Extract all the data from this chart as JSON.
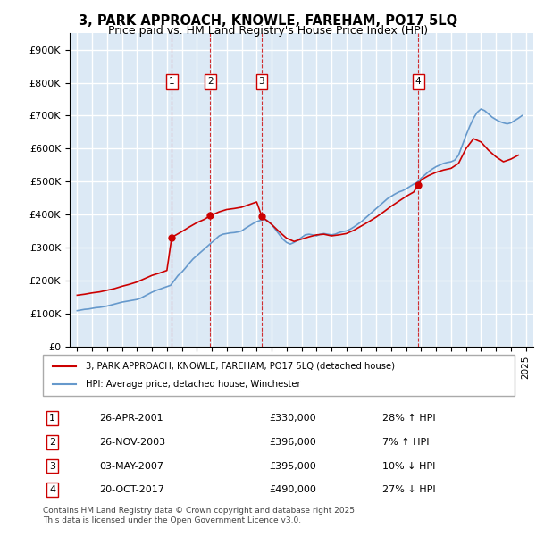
{
  "title": "3, PARK APPROACH, KNOWLE, FAREHAM, PO17 5LQ",
  "subtitle": "Price paid vs. HM Land Registry's House Price Index (HPI)",
  "legend_property": "3, PARK APPROACH, KNOWLE, FAREHAM, PO17 5LQ (detached house)",
  "legend_hpi": "HPI: Average price, detached house, Winchester",
  "footer": "Contains HM Land Registry data © Crown copyright and database right 2025.\nThis data is licensed under the Open Government Licence v3.0.",
  "transactions": [
    {
      "num": 1,
      "date": "26-APR-2001",
      "price": 330000,
      "pct": "28%",
      "dir": "↑"
    },
    {
      "num": 2,
      "date": "26-NOV-2003",
      "price": 396000,
      "pct": "7%",
      "dir": "↑"
    },
    {
      "num": 3,
      "date": "03-MAY-2007",
      "price": 395000,
      "pct": "10%",
      "dir": "↓"
    },
    {
      "num": 4,
      "date": "20-OCT-2017",
      "price": 490000,
      "pct": "27%",
      "dir": "↓"
    }
  ],
  "transaction_years": [
    2001.32,
    2003.9,
    2007.34,
    2017.8
  ],
  "transaction_prices": [
    330000,
    396000,
    395000,
    490000
  ],
  "hpi_years": [
    1995.0,
    1995.25,
    1995.5,
    1995.75,
    1996.0,
    1996.25,
    1996.5,
    1996.75,
    1997.0,
    1997.25,
    1997.5,
    1997.75,
    1998.0,
    1998.25,
    1998.5,
    1998.75,
    1999.0,
    1999.25,
    1999.5,
    1999.75,
    2000.0,
    2000.25,
    2000.5,
    2000.75,
    2001.0,
    2001.25,
    2001.5,
    2001.75,
    2002.0,
    2002.25,
    2002.5,
    2002.75,
    2003.0,
    2003.25,
    2003.5,
    2003.75,
    2004.0,
    2004.25,
    2004.5,
    2004.75,
    2005.0,
    2005.25,
    2005.5,
    2005.75,
    2006.0,
    2006.25,
    2006.5,
    2006.75,
    2007.0,
    2007.25,
    2007.5,
    2007.75,
    2008.0,
    2008.25,
    2008.5,
    2008.75,
    2009.0,
    2009.25,
    2009.5,
    2009.75,
    2010.0,
    2010.25,
    2010.5,
    2010.75,
    2011.0,
    2011.25,
    2011.5,
    2011.75,
    2012.0,
    2012.25,
    2012.5,
    2012.75,
    2013.0,
    2013.25,
    2013.5,
    2013.75,
    2014.0,
    2014.25,
    2014.5,
    2014.75,
    2015.0,
    2015.25,
    2015.5,
    2015.75,
    2016.0,
    2016.25,
    2016.5,
    2016.75,
    2017.0,
    2017.25,
    2017.5,
    2017.75,
    2018.0,
    2018.25,
    2018.5,
    2018.75,
    2019.0,
    2019.25,
    2019.5,
    2019.75,
    2020.0,
    2020.25,
    2020.5,
    2020.75,
    2021.0,
    2021.25,
    2021.5,
    2021.75,
    2022.0,
    2022.25,
    2022.5,
    2022.75,
    2023.0,
    2023.25,
    2023.5,
    2023.75,
    2024.0,
    2024.25,
    2024.5,
    2024.75
  ],
  "hpi_values": [
    108000,
    110000,
    112000,
    113000,
    115000,
    117000,
    118000,
    120000,
    122000,
    125000,
    128000,
    131000,
    134000,
    136000,
    138000,
    140000,
    142000,
    146000,
    152000,
    158000,
    164000,
    169000,
    173000,
    177000,
    181000,
    185000,
    200000,
    215000,
    225000,
    238000,
    252000,
    265000,
    275000,
    285000,
    295000,
    305000,
    315000,
    325000,
    335000,
    340000,
    342000,
    344000,
    345000,
    347000,
    350000,
    358000,
    365000,
    372000,
    378000,
    382000,
    385000,
    380000,
    370000,
    355000,
    340000,
    325000,
    315000,
    310000,
    315000,
    322000,
    330000,
    338000,
    340000,
    338000,
    335000,
    340000,
    342000,
    340000,
    338000,
    340000,
    345000,
    348000,
    350000,
    355000,
    362000,
    370000,
    378000,
    388000,
    398000,
    408000,
    418000,
    428000,
    438000,
    448000,
    455000,
    462000,
    468000,
    472000,
    478000,
    485000,
    492000,
    498000,
    510000,
    520000,
    530000,
    538000,
    545000,
    550000,
    555000,
    558000,
    560000,
    565000,
    580000,
    610000,
    640000,
    668000,
    692000,
    710000,
    720000,
    715000,
    705000,
    695000,
    688000,
    682000,
    678000,
    675000,
    678000,
    685000,
    692000,
    700000
  ],
  "property_line_years": [
    1995.0,
    1995.5,
    1996.0,
    1996.5,
    1997.0,
    1997.5,
    1998.0,
    1998.5,
    1999.0,
    1999.5,
    2000.0,
    2000.5,
    2001.0,
    2001.32,
    2001.32,
    2001.5,
    2002.0,
    2002.5,
    2003.0,
    2003.5,
    2003.9,
    2003.9,
    2004.0,
    2004.5,
    2005.0,
    2005.5,
    2006.0,
    2006.5,
    2007.0,
    2007.34,
    2007.34,
    2007.5,
    2008.0,
    2008.5,
    2009.0,
    2009.5,
    2010.0,
    2010.5,
    2011.0,
    2011.5,
    2012.0,
    2012.5,
    2013.0,
    2013.5,
    2014.0,
    2014.5,
    2015.0,
    2015.5,
    2016.0,
    2016.5,
    2017.0,
    2017.5,
    2017.8,
    2017.8,
    2018.0,
    2018.5,
    2019.0,
    2019.5,
    2020.0,
    2020.5,
    2021.0,
    2021.5,
    2022.0,
    2022.5,
    2023.0,
    2023.5,
    2024.0,
    2024.5
  ],
  "property_line_values": [
    155000,
    158000,
    162000,
    165000,
    170000,
    175000,
    182000,
    188000,
    195000,
    205000,
    215000,
    222000,
    230000,
    330000,
    330000,
    335000,
    348000,
    362000,
    375000,
    385000,
    396000,
    396000,
    398000,
    408000,
    415000,
    418000,
    422000,
    430000,
    438000,
    395000,
    395000,
    388000,
    370000,
    348000,
    328000,
    318000,
    325000,
    332000,
    338000,
    340000,
    335000,
    338000,
    342000,
    352000,
    365000,
    378000,
    392000,
    408000,
    425000,
    440000,
    455000,
    468000,
    490000,
    490000,
    505000,
    518000,
    528000,
    535000,
    540000,
    555000,
    600000,
    630000,
    620000,
    595000,
    575000,
    560000,
    568000,
    580000
  ],
  "bg_color": "#dce9f5",
  "plot_bg": "#dce9f5",
  "red_color": "#cc0000",
  "blue_color": "#6699cc",
  "grid_color": "#ffffff",
  "ylim": [
    0,
    950000
  ],
  "yticks": [
    0,
    100000,
    200000,
    300000,
    400000,
    500000,
    600000,
    700000,
    800000,
    900000
  ],
  "xlim": [
    1994.5,
    2025.5
  ],
  "xticks": [
    1995,
    1996,
    1997,
    1998,
    1999,
    2000,
    2001,
    2002,
    2003,
    2004,
    2005,
    2006,
    2007,
    2008,
    2009,
    2010,
    2011,
    2012,
    2013,
    2014,
    2015,
    2016,
    2017,
    2018,
    2019,
    2020,
    2021,
    2022,
    2023,
    2024,
    2025
  ]
}
